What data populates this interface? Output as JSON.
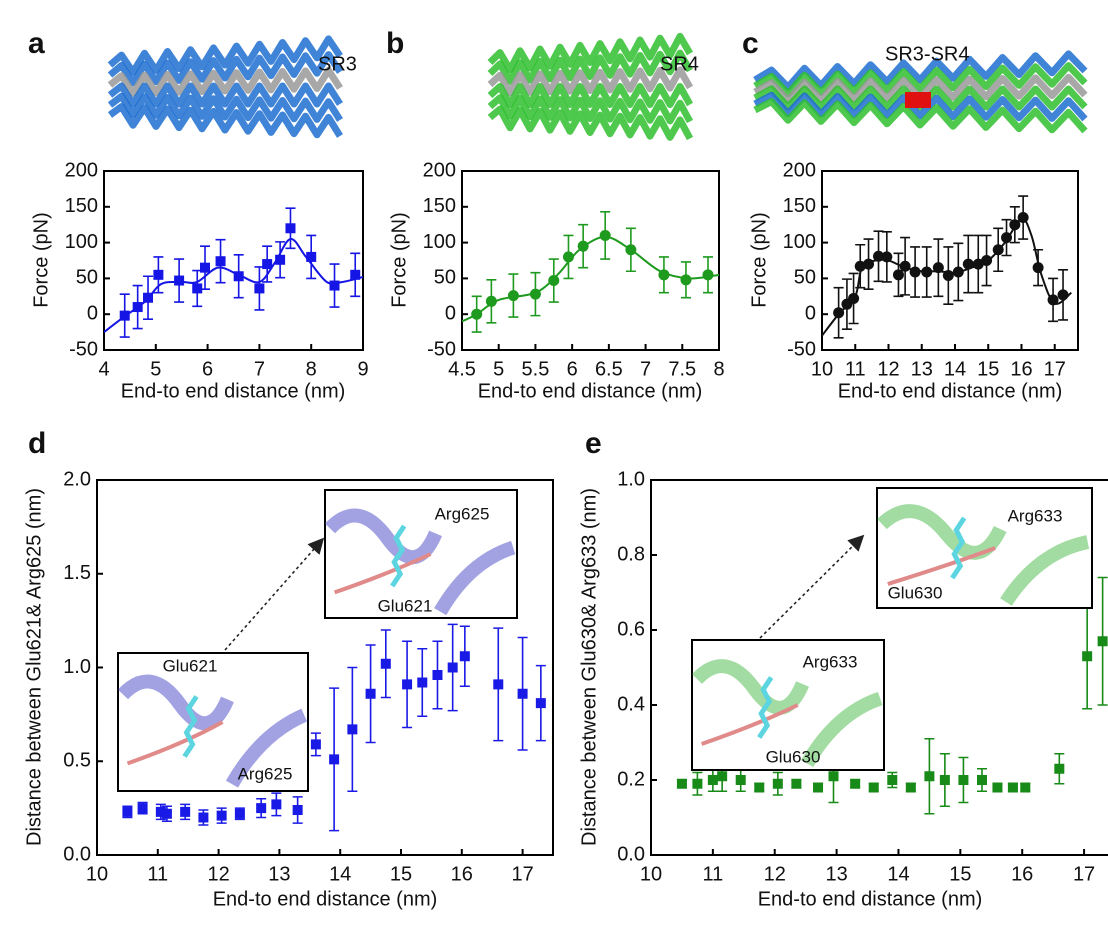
{
  "chart_data": [
    {
      "type": "scatter",
      "panel": "a",
      "structure_label": "SR3",
      "color": "#1515e6",
      "marker": "square",
      "x": [
        4.4,
        4.65,
        4.85,
        5.05,
        5.45,
        5.8,
        5.95,
        6.25,
        6.6,
        7.0,
        7.15,
        7.4,
        7.6,
        8.0,
        8.45,
        8.85
      ],
      "values": [
        -2,
        10,
        23,
        55,
        47,
        36,
        65,
        74,
        53,
        36,
        70,
        76,
        120,
        80,
        40,
        55
      ],
      "errors": [
        30,
        30,
        30,
        25,
        30,
        25,
        30,
        30,
        30,
        30,
        25,
        25,
        28,
        30,
        30,
        30
      ],
      "fit": {
        "x": [
          4,
          4.4,
          4.8,
          5.1,
          5.5,
          5.8,
          6.2,
          6.6,
          7.0,
          7.3,
          7.6,
          7.9,
          8.3,
          8.6,
          9
        ],
        "values": [
          -25,
          -3,
          18,
          42,
          45,
          45,
          65,
          55,
          45,
          72,
          105,
          80,
          45,
          45,
          52
        ]
      },
      "xlim": [
        4,
        9
      ],
      "ylim": [
        -50,
        200
      ],
      "xticks": [
        4,
        5,
        6,
        7,
        8,
        9
      ],
      "yticks": [
        -50,
        0,
        50,
        100,
        150,
        200
      ],
      "xlabel": "End-to end distance (nm)",
      "ylabel": "Force (pN)"
    },
    {
      "type": "scatter",
      "panel": "b",
      "structure_label": "SR4",
      "color": "#1e9b1e",
      "marker": "circle",
      "x": [
        4.7,
        4.9,
        5.2,
        5.5,
        5.75,
        5.95,
        6.15,
        6.45,
        6.8,
        7.25,
        7.55,
        7.85
      ],
      "values": [
        0,
        18,
        26,
        28,
        47,
        80,
        95,
        110,
        90,
        55,
        48,
        55
      ],
      "errors": [
        25,
        30,
        30,
        30,
        30,
        30,
        30,
        33,
        30,
        25,
        25,
        25
      ],
      "fit": {
        "x": [
          4.5,
          4.7,
          5,
          5.5,
          5.8,
          6.1,
          6.45,
          6.8,
          7.2,
          7.6,
          8
        ],
        "values": [
          -10,
          0,
          20,
          30,
          55,
          90,
          108,
          90,
          60,
          50,
          55
        ]
      },
      "xlim": [
        4.5,
        8
      ],
      "ylim": [
        -50,
        200
      ],
      "xticks": [
        4.5,
        5,
        5.5,
        6,
        6.5,
        7,
        7.5,
        8
      ],
      "yticks": [
        -50,
        0,
        50,
        100,
        150,
        200
      ],
      "xlabel": "End-to end distance (nm)",
      "ylabel": "Force (pN)"
    },
    {
      "type": "scatter",
      "panel": "c",
      "structure_label": "SR3-SR4",
      "color": "#111111",
      "marker": "circle",
      "x": [
        10.5,
        10.75,
        10.95,
        11.15,
        11.4,
        11.7,
        11.95,
        12.3,
        12.5,
        12.8,
        13.15,
        13.5,
        13.8,
        14.1,
        14.4,
        14.7,
        14.95,
        15.3,
        15.55,
        15.8,
        16.05,
        16.5,
        16.95,
        17.25
      ],
      "values": [
        2,
        14,
        22,
        67,
        70,
        81,
        80,
        55,
        67,
        59,
        59,
        65,
        54,
        59,
        70,
        70,
        75,
        90,
        107,
        125,
        135,
        65,
        20,
        27
      ],
      "errors": [
        35,
        35,
        35,
        30,
        35,
        35,
        35,
        30,
        40,
        35,
        35,
        40,
        40,
        40,
        40,
        40,
        35,
        30,
        25,
        25,
        30,
        25,
        30,
        35
      ],
      "fit": {
        "x": [
          10,
          10.5,
          11,
          11.2,
          11.6,
          12,
          12.5,
          13,
          13.5,
          14,
          14.5,
          15,
          15.5,
          16,
          16.3,
          16.6,
          17,
          17.5
        ],
        "values": [
          -30,
          0,
          25,
          65,
          75,
          75,
          65,
          60,
          60,
          58,
          65,
          75,
          100,
          133,
          110,
          55,
          15,
          30
        ]
      },
      "xlim": [
        10,
        17.7
      ],
      "ylim": [
        -50,
        200
      ],
      "xticks": [
        10,
        11,
        12,
        13,
        14,
        15,
        16,
        17
      ],
      "yticks": [
        -50,
        0,
        50,
        100,
        150,
        200
      ],
      "xlabel": "End-to end distance (nm)",
      "ylabel": "Force (pN)"
    },
    {
      "type": "scatter",
      "panel": "d",
      "color": "#1a1ae6",
      "marker": "square",
      "x": [
        10.5,
        10.75,
        11.05,
        11.15,
        11.45,
        11.75,
        12.05,
        12.35,
        12.7,
        12.95,
        13.3,
        13.6,
        13.9,
        14.2,
        14.5,
        14.75,
        15.1,
        15.35,
        15.6,
        15.85,
        16.05,
        16.6,
        17.0,
        17.3
      ],
      "values": [
        0.23,
        0.25,
        0.23,
        0.22,
        0.23,
        0.2,
        0.21,
        0.22,
        0.25,
        0.27,
        0.24,
        0.59,
        0.51,
        0.67,
        0.86,
        1.02,
        0.91,
        0.92,
        0.96,
        1.0,
        1.06,
        0.91,
        0.86,
        0.81
      ],
      "errors": [
        0.03,
        0.03,
        0.04,
        0.04,
        0.04,
        0.04,
        0.04,
        0.03,
        0.05,
        0.06,
        0.07,
        0.06,
        0.38,
        0.33,
        0.26,
        0.18,
        0.23,
        0.18,
        0.18,
        0.23,
        0.16,
        0.3,
        0.3,
        0.2
      ],
      "xlim": [
        10,
        17.5
      ],
      "ylim": [
        0,
        2
      ],
      "xticks": [
        10,
        11,
        12,
        13,
        14,
        15,
        16,
        17
      ],
      "yticks": [
        {
          "value": 0,
          "label": "0.0"
        },
        0.5,
        {
          "value": 1,
          "label": "1.0"
        },
        1.5,
        {
          "value": 2,
          "label": "2.0"
        }
      ],
      "xlabel": "End-to end distance (nm)",
      "ylabel": "Distance between Glu621& Arg625 (nm)",
      "insets": [
        {
          "labels": [
            "Arg625",
            "Glu621"
          ]
        },
        {
          "labels": [
            "Glu621",
            "Arg625"
          ]
        }
      ]
    },
    {
      "type": "scatter",
      "panel": "e",
      "color": "#188a18",
      "marker": "square",
      "x": [
        10.5,
        10.75,
        11.0,
        11.15,
        11.45,
        11.75,
        12.05,
        12.35,
        12.7,
        12.95,
        13.3,
        13.6,
        13.9,
        14.2,
        14.5,
        14.75,
        15.05,
        15.35,
        15.6,
        15.85,
        16.05,
        16.6,
        17.05,
        17.3
      ],
      "values": [
        0.19,
        0.19,
        0.2,
        0.21,
        0.2,
        0.18,
        0.19,
        0.19,
        0.18,
        0.21,
        0.19,
        0.18,
        0.2,
        0.18,
        0.21,
        0.2,
        0.2,
        0.2,
        0.18,
        0.18,
        0.18,
        0.23,
        0.53,
        0.57
      ],
      "errors": [
        0.01,
        0.03,
        0.03,
        0.04,
        0.03,
        0.01,
        0.03,
        0.01,
        0.01,
        0.07,
        0.01,
        0.01,
        0.02,
        0.01,
        0.1,
        0.07,
        0.06,
        0.03,
        0.01,
        0.01,
        0.01,
        0.04,
        0.14,
        0.17
      ],
      "xlim": [
        10,
        17.5
      ],
      "ylim": [
        0,
        1
      ],
      "xticks": [
        10,
        11,
        12,
        13,
        14,
        15,
        16,
        17
      ],
      "yticks": [
        {
          "value": 0,
          "label": "0.0"
        },
        0.2,
        0.4,
        0.6,
        0.8,
        {
          "value": 1,
          "label": "1.0"
        }
      ],
      "xlabel": "End-to end distance (nm)",
      "ylabel": "Distance between Glu630& Arg633 (nm)",
      "insets": [
        {
          "labels": [
            "Arg633",
            "Glu630"
          ]
        },
        {
          "labels": [
            "Arg633",
            "Glu630"
          ]
        }
      ]
    }
  ]
}
